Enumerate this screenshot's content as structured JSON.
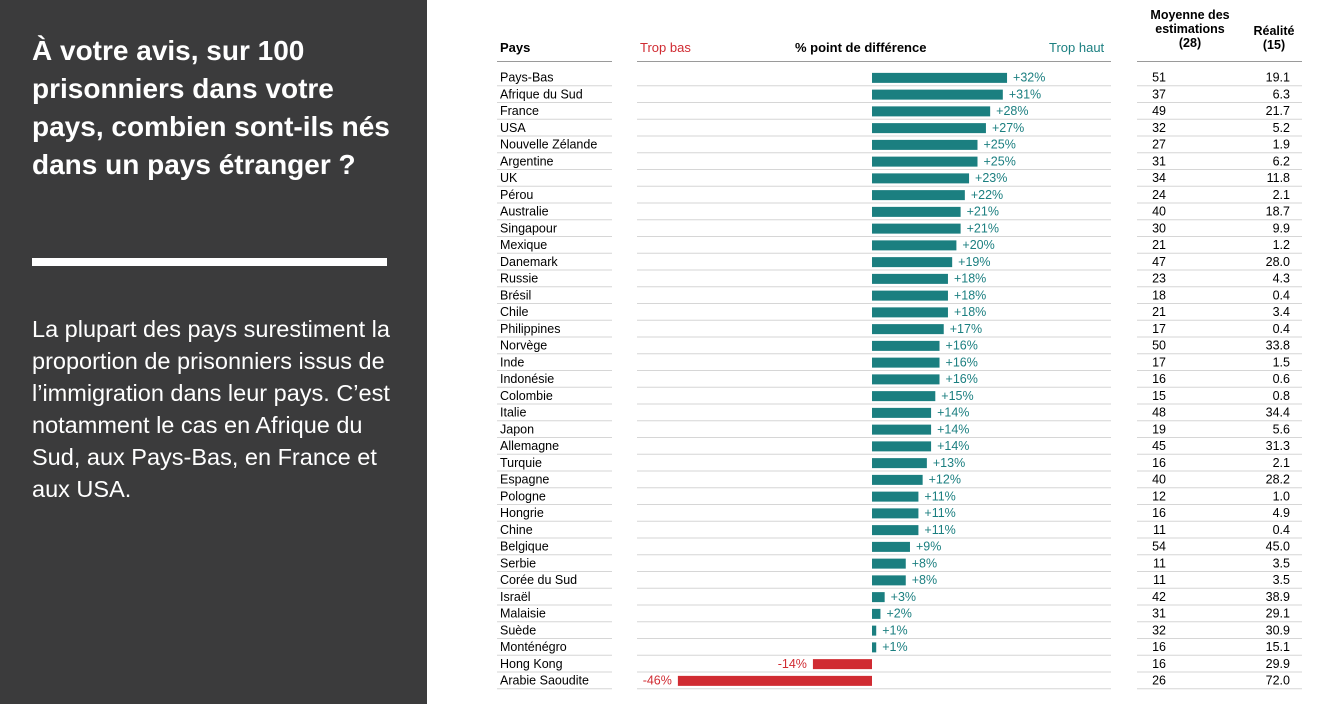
{
  "left_panel": {
    "question": "À votre avis, sur 100 prisonniers dans votre pays, combien sont-ils nés dans un pays étranger ?",
    "summary": "La plupart des pays surestiment la proportion de prisonniers issus de l’immigration dans leur pays. C’est notamment le cas en Afrique du Sud, aux Pays-Bas, en France et aux USA."
  },
  "headers": {
    "country": "Pays",
    "too_low": "Trop bas",
    "difference": "% point de différence",
    "too_high": "Trop haut",
    "average_line1": "Moyenne des",
    "average_line2": "estimations",
    "average_line3": "(28)",
    "reality_line1": "Réalité",
    "reality_line2": "(15)"
  },
  "colors": {
    "panel_bg": "#3b3b3c",
    "positive": "#1b7f80",
    "negative": "#d02b32"
  },
  "chart_data": {
    "type": "bar",
    "orientation": "horizontal",
    "categories": [
      "Pays-Bas",
      "Afrique du Sud",
      "France",
      "USA",
      "Nouvelle Zélande",
      "Argentine",
      "UK",
      "Pérou",
      "Australie",
      "Singapour",
      "Mexique",
      "Danemark",
      "Russie",
      "Brésil",
      "Chile",
      "Philippines",
      "Norvège",
      "Inde",
      "Indonésie",
      "Colombie",
      "Italie",
      "Japon",
      "Allemagne",
      "Turquie",
      "Espagne",
      "Pologne",
      "Hongrie",
      "Chine",
      "Belgique",
      "Serbie",
      "Corée du Sud",
      "Israël",
      "Malaisie",
      "Suède",
      "Monténégro",
      "Hong Kong",
      "Arabie Saoudite"
    ],
    "values": [
      32,
      31,
      28,
      27,
      25,
      25,
      23,
      22,
      21,
      21,
      20,
      19,
      18,
      18,
      18,
      17,
      16,
      16,
      16,
      15,
      14,
      14,
      14,
      13,
      12,
      11,
      11,
      11,
      9,
      8,
      8,
      3,
      2,
      1,
      1,
      -14,
      -46
    ],
    "labels": [
      "+32%",
      "+31%",
      "+28%",
      "+27%",
      "+25%",
      "+25%",
      "+23%",
      "+22%",
      "+21%",
      "+21%",
      "+20%",
      "+19%",
      "+18%",
      "+18%",
      "+18%",
      "+17%",
      "+16%",
      "+16%",
      "+16%",
      "+15%",
      "+14%",
      "+14%",
      "+14%",
      "+13%",
      "+12%",
      "+11%",
      "+11%",
      "+11%",
      "+9%",
      "+8%",
      "+8%",
      "+3%",
      "+2%",
      "+1%",
      "+1%",
      "-14%",
      "-46%"
    ],
    "average_estimates": [
      "51",
      "37",
      "49",
      "32",
      "27",
      "31",
      "34",
      "24",
      "40",
      "30",
      "21",
      "47",
      "23",
      "18",
      "21",
      "17",
      "50",
      "17",
      "16",
      "15",
      "48",
      "19",
      "45",
      "16",
      "40",
      "12",
      "16",
      "11",
      "54",
      "11",
      "11",
      "42",
      "31",
      "32",
      "16",
      "16",
      "26"
    ],
    "reality": [
      "19.1",
      "6.3",
      "21.7",
      "5.2",
      "1.9",
      "6.2",
      "11.8",
      "2.1",
      "18.7",
      "9.9",
      "1.2",
      "28.0",
      "4.3",
      "0.4",
      "3.4",
      "0.4",
      "33.8",
      "1.5",
      "0.6",
      "0.8",
      "34.4",
      "5.6",
      "31.3",
      "2.1",
      "28.2",
      "1.0",
      "4.9",
      "0.4",
      "45.0",
      "3.5",
      "3.5",
      "38.9",
      "29.1",
      "30.9",
      "15.1",
      "29.9",
      "72.0"
    ],
    "xlabel": "% point de différence",
    "title": ""
  }
}
